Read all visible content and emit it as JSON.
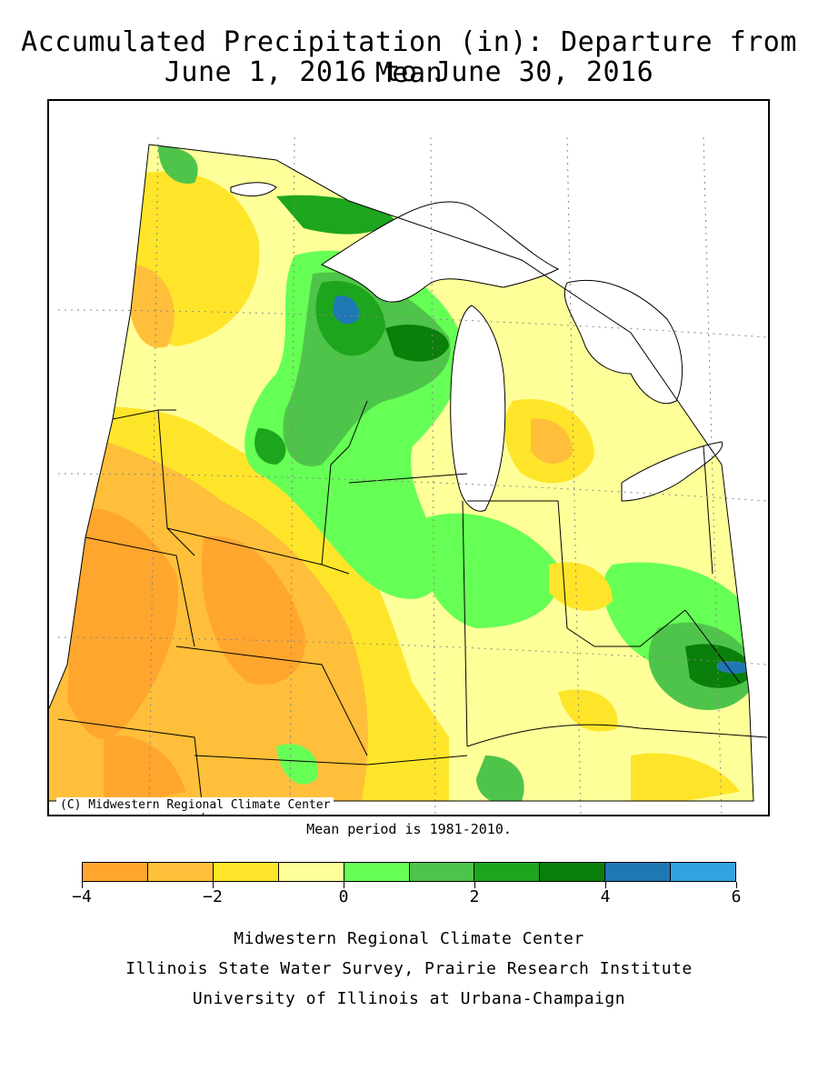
{
  "title": {
    "line1": "Accumulated Precipitation (in): Departure from Mean",
    "line2": "June 1, 2016 to June 30, 2016"
  },
  "map": {
    "copyright": "(C) Midwestern Regional Climate Center",
    "mean_period": "Mean period is 1981-2010.",
    "departure_fields": [
      {
        "region": "west-plains-south",
        "value": -3.5
      },
      {
        "region": "upper-mississippi",
        "value": -2.5
      },
      {
        "region": "northwest-minnesota",
        "value": -1.5
      },
      {
        "region": "wisconsin",
        "value": 1.5
      },
      {
        "region": "northern-wisconsin",
        "value": 2.5
      },
      {
        "region": "northern-wisconsin-peak",
        "value": 4.5
      },
      {
        "region": "northern-minnesota-arrowhead",
        "value": 3.0
      },
      {
        "region": "lower-michigan",
        "value": -0.5
      },
      {
        "region": "central-lower-michigan",
        "value": -1.5
      },
      {
        "region": "indiana-ohio",
        "value": 0.5
      },
      {
        "region": "west-virginia",
        "value": 3.5
      },
      {
        "region": "west-virginia-peak",
        "value": 4.5
      }
    ],
    "colors": {
      "land_default": "#ffff99",
      "water": "#ffffff",
      "border": "#000000"
    }
  },
  "legend": {
    "bins": [
      {
        "from": -4,
        "to": -3,
        "color": "#ffa62e"
      },
      {
        "from": -3,
        "to": -2,
        "color": "#ffbf3a"
      },
      {
        "from": -2,
        "to": -1,
        "color": "#ffe52a"
      },
      {
        "from": -1,
        "to": 0,
        "color": "#ffff99"
      },
      {
        "from": 0,
        "to": 1,
        "color": "#66ff55"
      },
      {
        "from": 1,
        "to": 2,
        "color": "#4fc44a"
      },
      {
        "from": 2,
        "to": 3,
        "color": "#1ea51e"
      },
      {
        "from": 3,
        "to": 4,
        "color": "#0a7f0a"
      },
      {
        "from": 4,
        "to": 5,
        "color": "#1f78b4"
      },
      {
        "from": 5,
        "to": 6,
        "color": "#32a2e0"
      }
    ],
    "tick_labels": [
      "-4",
      "-2",
      "0",
      "2",
      "4",
      "6"
    ]
  },
  "footer": {
    "line1": "Midwestern Regional Climate Center",
    "line2": "Illinois State Water Survey, Prairie Research Institute",
    "line3": "University of Illinois at Urbana-Champaign"
  }
}
